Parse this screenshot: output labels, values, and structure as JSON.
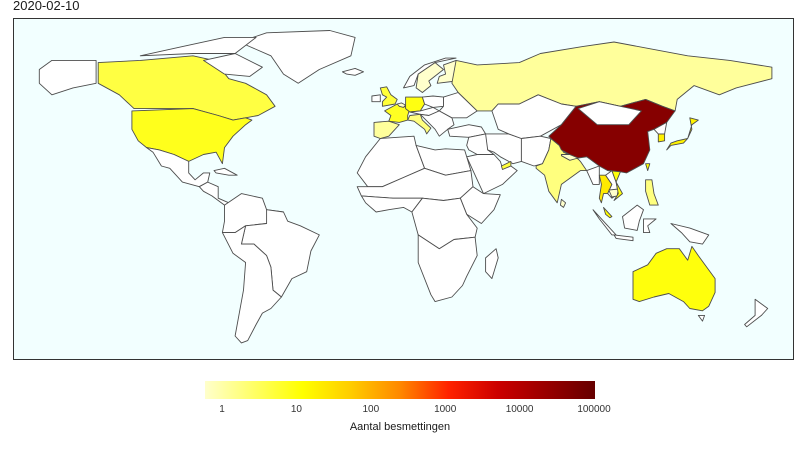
{
  "title": "2020-02-10",
  "colors": {
    "ocean": "#f2ffff",
    "no_data": "#ffffff",
    "border": "#4d4d4d",
    "scale": [
      "#ffffcc",
      "#ffff66",
      "#ffff00",
      "#ffcc00",
      "#ff8800",
      "#ff2200",
      "#cc0000",
      "#990000",
      "#660000"
    ]
  },
  "legend": {
    "title": "Aantal besmettingen",
    "scale": "log10",
    "domain": [
      1,
      100000
    ],
    "ticks": [
      "1",
      "10",
      "100",
      "1000",
      "10000",
      "100000"
    ]
  },
  "chart_data": {
    "type": "choropleth",
    "date": "2020-02-10",
    "variable": "Aantal besmettingen",
    "scale": "log10",
    "regions": [
      {
        "name": "China",
        "value": 40000
      },
      {
        "name": "Japan",
        "value": 26
      },
      {
        "name": "South Korea",
        "value": 27
      },
      {
        "name": "Taiwan",
        "value": 18
      },
      {
        "name": "Thailand",
        "value": 32
      },
      {
        "name": "Vietnam",
        "value": 15
      },
      {
        "name": "Cambodia",
        "value": 1
      },
      {
        "name": "Malaysia",
        "value": 18
      },
      {
        "name": "Singapore",
        "value": 43
      },
      {
        "name": "Philippines",
        "value": 3
      },
      {
        "name": "Nepal",
        "value": 1
      },
      {
        "name": "India",
        "value": 3
      },
      {
        "name": "Sri Lanka",
        "value": 1
      },
      {
        "name": "United Arab Emirates",
        "value": 8
      },
      {
        "name": "Russia",
        "value": 2
      },
      {
        "name": "Finland",
        "value": 1
      },
      {
        "name": "Sweden",
        "value": 1
      },
      {
        "name": "United Kingdom",
        "value": 8
      },
      {
        "name": "France",
        "value": 11
      },
      {
        "name": "Germany",
        "value": 14
      },
      {
        "name": "Italy",
        "value": 3
      },
      {
        "name": "Spain",
        "value": 2
      },
      {
        "name": "Belgium",
        "value": 1
      },
      {
        "name": "United States",
        "value": 12
      },
      {
        "name": "Canada",
        "value": 7
      },
      {
        "name": "Australia",
        "value": 15
      }
    ]
  }
}
